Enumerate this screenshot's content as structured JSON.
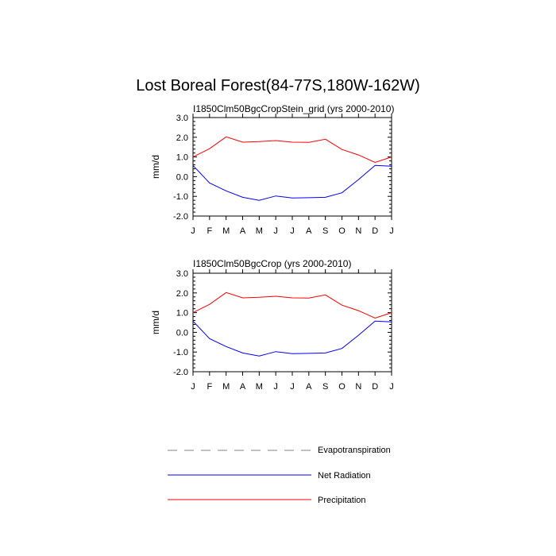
{
  "title": "Lost Boreal Forest(84-77S,180W-162W)",
  "colors": {
    "net_radiation": "#0000ff",
    "precipitation": "#ff0000",
    "evapotranspiration": "#808080",
    "axis": "#000000"
  },
  "legend": [
    {
      "label": "Evapotranspiration",
      "style": "dashed",
      "color": "#808080"
    },
    {
      "label": "Net Radiation",
      "style": "solid",
      "color": "#0000ff"
    },
    {
      "label": "Precipitation",
      "style": "solid",
      "color": "#ff0000"
    }
  ],
  "chart_data": [
    {
      "type": "line",
      "title": "I1850Clm50BgcCropStein_grid (yrs 2000-2010)",
      "ylabel": "mm/d",
      "xlabel": "",
      "ylim": [
        -2.0,
        3.0
      ],
      "yticks": [
        "3.0",
        "2.0",
        "1.0",
        "0.0",
        "-1.0",
        "-2.0"
      ],
      "categories": [
        "J",
        "F",
        "M",
        "A",
        "M",
        "J",
        "J",
        "A",
        "S",
        "O",
        "N",
        "D",
        "J"
      ],
      "series": [
        {
          "name": "Precipitation",
          "values": [
            1.0,
            1.42,
            2.02,
            1.75,
            1.78,
            1.83,
            1.75,
            1.74,
            1.9,
            1.38,
            1.1,
            0.72,
            1.0
          ]
        },
        {
          "name": "Net Radiation",
          "values": [
            0.57,
            -0.32,
            -0.72,
            -1.05,
            -1.2,
            -0.98,
            -1.08,
            -1.07,
            -1.05,
            -0.82,
            -0.15,
            0.57,
            0.53
          ]
        }
      ]
    },
    {
      "type": "line",
      "title": "I1850Clm50BgcCrop (yrs 2000-2010)",
      "ylabel": "mm/d",
      "xlabel": "",
      "ylim": [
        -2.0,
        3.0
      ],
      "yticks": [
        "3.0",
        "2.0",
        "1.0",
        "0.0",
        "-1.0",
        "-2.0"
      ],
      "categories": [
        "J",
        "F",
        "M",
        "A",
        "M",
        "J",
        "J",
        "A",
        "S",
        "O",
        "N",
        "D",
        "J"
      ],
      "series": [
        {
          "name": "Precipitation",
          "values": [
            1.0,
            1.42,
            2.02,
            1.75,
            1.78,
            1.83,
            1.75,
            1.74,
            1.9,
            1.38,
            1.1,
            0.72,
            1.0
          ]
        },
        {
          "name": "Net Radiation",
          "values": [
            0.57,
            -0.32,
            -0.72,
            -1.05,
            -1.2,
            -0.98,
            -1.08,
            -1.07,
            -1.05,
            -0.82,
            -0.15,
            0.57,
            0.53
          ]
        }
      ]
    }
  ]
}
